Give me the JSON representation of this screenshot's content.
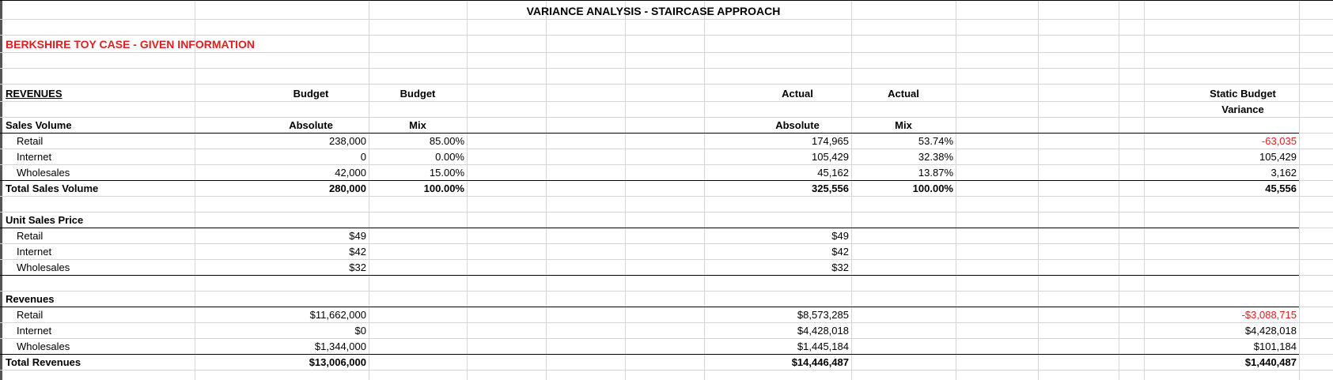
{
  "sheet": {
    "title": "VARIANCE ANALYSIS - STAIRCASE APPROACH",
    "case_title": "BERKSHIRE TOY CASE - GIVEN INFORMATION",
    "accent_color": "#e02020"
  },
  "headers": {
    "section": "REVENUES",
    "budget_absolute_top": "Budget",
    "budget_mix_top": "Budget",
    "actual_absolute_top": "Actual",
    "actual_mix_top": "Actual",
    "variance_top": "Static Budget",
    "variance_bottom": "Variance",
    "absolute": "Absolute",
    "mix": "Mix",
    "absolute_actual": "Absolute",
    "mix_actual": "Mix"
  },
  "sales_volume": {
    "label": "Sales Volume",
    "rows": [
      {
        "label": "Retail",
        "budget": "238,000",
        "budget_mix": "85.00%",
        "actual": "174,965",
        "actual_mix": "53.74%",
        "variance": "-63,035"
      },
      {
        "label": "Internet",
        "budget": "0",
        "budget_mix": "0.00%",
        "actual": "105,429",
        "actual_mix": "32.38%",
        "variance": "105,429"
      },
      {
        "label": "Wholesales",
        "budget": "42,000",
        "budget_mix": "15.00%",
        "actual": "45,162",
        "actual_mix": "13.87%",
        "variance": "3,162"
      }
    ],
    "total": {
      "label": "Total Sales Volume",
      "budget": "280,000",
      "budget_mix": "100.00%",
      "actual": "325,556",
      "actual_mix": "100.00%",
      "variance": "45,556"
    }
  },
  "unit_price": {
    "label": "Unit Sales Price",
    "rows": [
      {
        "label": "Retail",
        "budget": "$49",
        "actual": "$49"
      },
      {
        "label": "Internet",
        "budget": "$42",
        "actual": "$42"
      },
      {
        "label": "Wholesales",
        "budget": "$32",
        "actual": "$32"
      }
    ]
  },
  "revenues": {
    "label": "Revenues",
    "rows": [
      {
        "label": "Retail",
        "budget": "$11,662,000",
        "actual": "$8,573,285",
        "variance": "-$3,088,715"
      },
      {
        "label": "Internet",
        "budget": "$0",
        "actual": "$4,428,018",
        "variance": "$4,428,018"
      },
      {
        "label": "Wholesales",
        "budget": "$1,344,000",
        "actual": "$1,445,184",
        "variance": "$101,184"
      }
    ],
    "total": {
      "label": "Total Revenues",
      "budget": "$13,006,000",
      "actual": "$14,446,487",
      "variance": "$1,440,487"
    }
  }
}
